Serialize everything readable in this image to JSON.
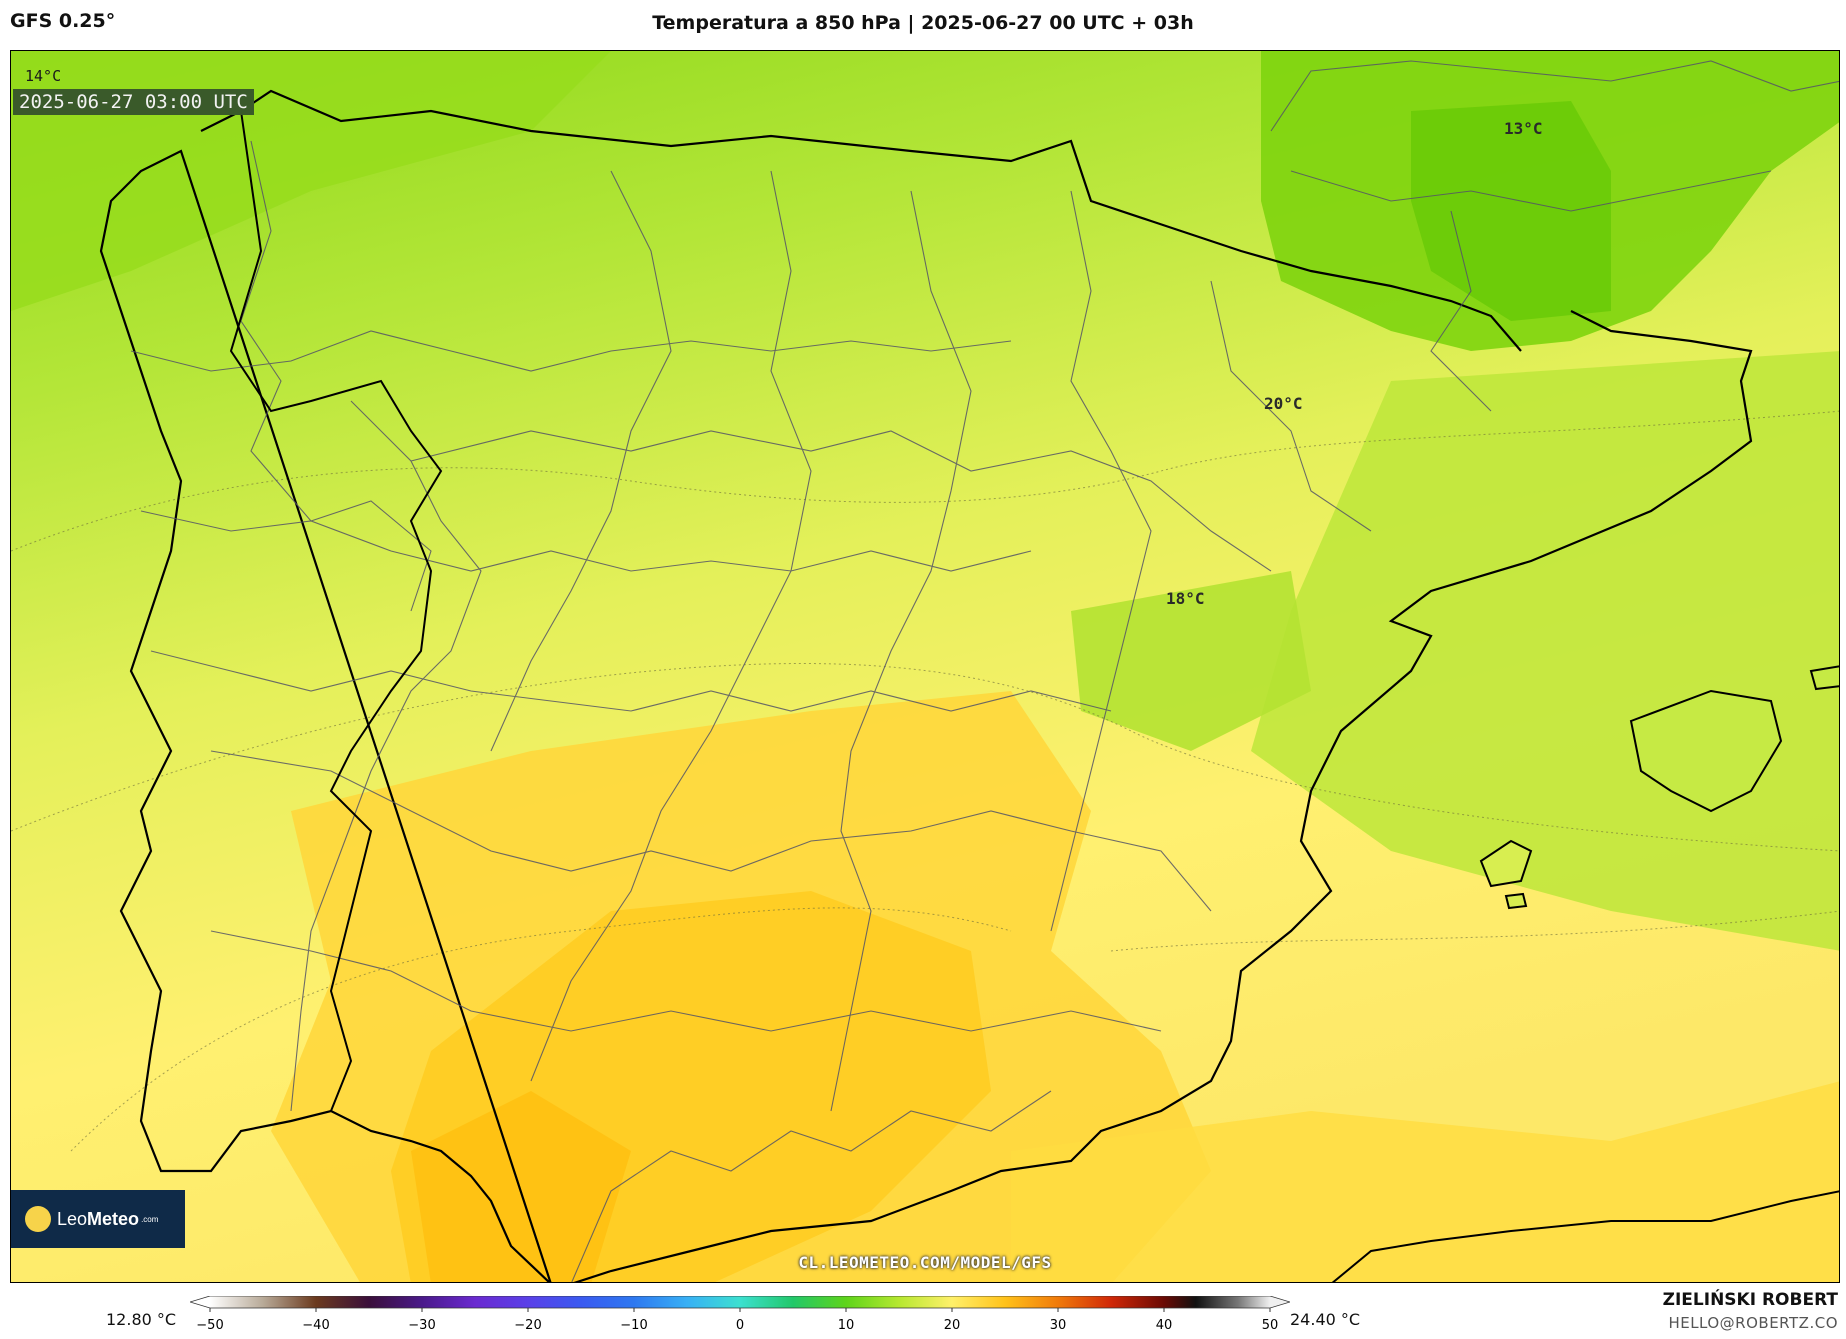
{
  "header": {
    "model": "GFS 0.25°",
    "title": "Temperatura a 850 hPa | 2025-06-27 00 UTC + 03h"
  },
  "map": {
    "corner_label": "14°C",
    "timestamp": "2025-06-27 03:00 UTC",
    "labels": [
      {
        "id": "label-13",
        "text": "13°C"
      },
      {
        "id": "label-20",
        "text": "20°C"
      },
      {
        "id": "label-18",
        "text": "18°C"
      }
    ],
    "watermark": "CL.LEOMETEO.COM/MODEL/GFS",
    "logo": {
      "brand_light": "Leo",
      "brand_bold": "Meteo",
      "suffix": ".com"
    }
  },
  "colorbar": {
    "min_label": "12.80 °C",
    "max_label": "24.40 °C",
    "ticks": [
      "−50",
      "−40",
      "−30",
      "−20",
      "−10",
      "0",
      "10",
      "20",
      "30",
      "40",
      "50"
    ],
    "range": [
      -50,
      50
    ],
    "stops": [
      {
        "v": -50,
        "c": "#ffffff"
      },
      {
        "v": -45,
        "c": "#b8aa98"
      },
      {
        "v": -40,
        "c": "#6b3a1e"
      },
      {
        "v": -35,
        "c": "#3a0f3a"
      },
      {
        "v": -30,
        "c": "#4a1a8a"
      },
      {
        "v": -25,
        "c": "#6a2ad0"
      },
      {
        "v": -20,
        "c": "#5a40e8"
      },
      {
        "v": -15,
        "c": "#3a5af0"
      },
      {
        "v": -10,
        "c": "#2e78f0"
      },
      {
        "v": -5,
        "c": "#38b0f5"
      },
      {
        "v": 0,
        "c": "#3ce0d0"
      },
      {
        "v": 5,
        "c": "#22c86a"
      },
      {
        "v": 10,
        "c": "#5ed41a"
      },
      {
        "v": 15,
        "c": "#b6e830"
      },
      {
        "v": 20,
        "c": "#fff06a"
      },
      {
        "v": 25,
        "c": "#ffc21a"
      },
      {
        "v": 30,
        "c": "#f07a0a"
      },
      {
        "v": 35,
        "c": "#d02808"
      },
      {
        "v": 40,
        "c": "#6a0a04"
      },
      {
        "v": 43,
        "c": "#111111"
      },
      {
        "v": 47,
        "c": "#777777"
      },
      {
        "v": 50,
        "c": "#f0f0f0"
      }
    ]
  },
  "credits": {
    "author": "ZIELIŃSKI ROBERT",
    "email": "HELLO@ROBERTZ.CO"
  }
}
